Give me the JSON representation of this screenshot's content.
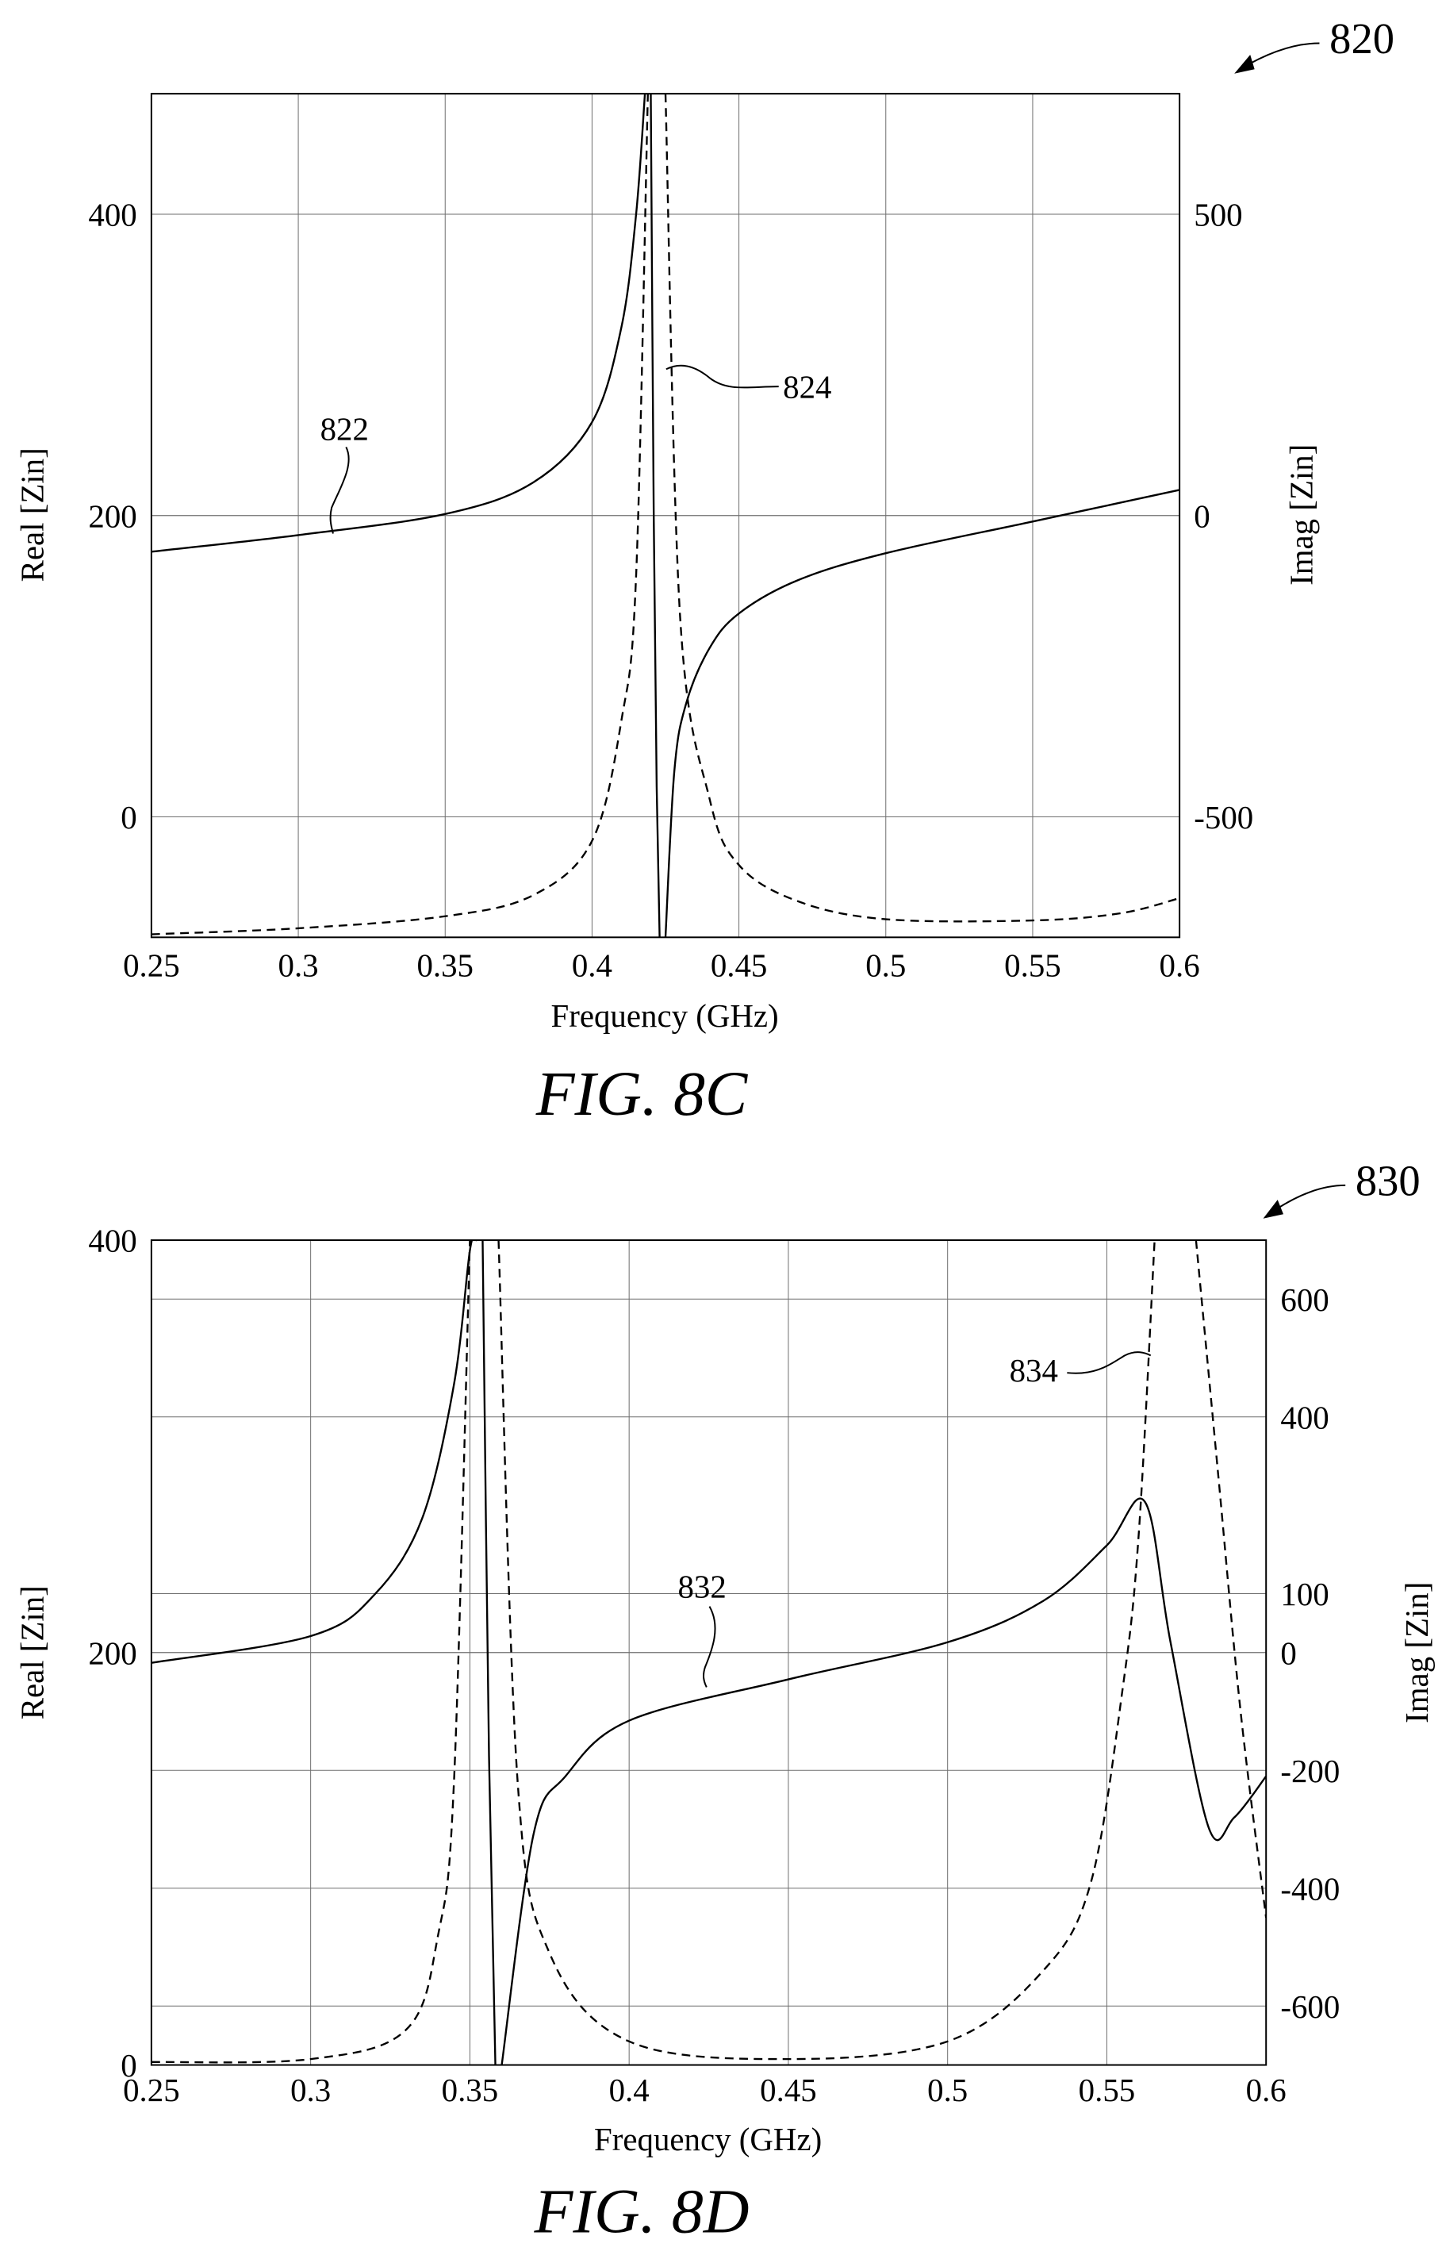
{
  "figures": [
    {
      "ref_number": "820",
      "caption": "FIG. 8C",
      "chart_data": {
        "type": "line",
        "xlabel": "Frequency (GHz)",
        "ylabel_left": "Real [Zin]",
        "ylabel_right": "Imag [Zin]",
        "xlim": [
          0.25,
          0.6
        ],
        "ylim_left": [
          -80,
          480
        ],
        "ylim_right": [
          -700,
          700
        ],
        "xticks": [
          "0.25",
          "0.3",
          "0.35",
          "0.4",
          "0.45",
          "0.5",
          "0.55",
          "0.6"
        ],
        "yticks_left": [
          "0",
          "200",
          "400"
        ],
        "yticks_right": [
          "-500",
          "0",
          "500"
        ],
        "grid": true,
        "series": [
          {
            "name": "822",
            "axis": "left",
            "style": "solid",
            "segments": [
              {
                "x": [
                  0.25,
                  0.3,
                  0.35,
                  0.38,
                  0.4,
                  0.41,
                  0.415,
                  0.418
                ],
                "y": [
                  176,
                  187,
                  201,
                  222,
                  262,
                  325,
                  400,
                  480
                ]
              },
              {
                "x": [
                  0.42,
                  0.421,
                  0.422,
                  0.423
                ],
                "y": [
                  480,
                  200,
                  20,
                  -80
                ]
              },
              {
                "x": [
                  0.425,
                  0.428,
                  0.432,
                  0.44,
                  0.45,
                  0.47,
                  0.5,
                  0.55,
                  0.6
                ],
                "y": [
                  -80,
                  30,
                  75,
                  112,
                  135,
                  157,
                  175,
                  196,
                  217
                ]
              }
            ]
          },
          {
            "name": "824",
            "axis": "right",
            "style": "dashed",
            "segments": [
              {
                "x": [
                  0.25,
                  0.3,
                  0.35,
                  0.38,
                  0.4,
                  0.41,
                  0.415,
                  0.419
                ],
                "y": [
                  -695,
                  -685,
                  -665,
                  -630,
                  -540,
                  -340,
                  -100,
                  700
                ]
              },
              {
                "x": [
                  0.425,
                  0.43,
                  0.44,
                  0.45,
                  0.47,
                  0.5,
                  0.55,
                  0.58,
                  0.6
                ],
                "y": [
                  700,
                  -170,
                  -470,
                  -580,
                  -640,
                  -670,
                  -672,
                  -660,
                  -635
                ]
              }
            ]
          }
        ]
      }
    },
    {
      "ref_number": "830",
      "caption": "FIG. 8D",
      "chart_data": {
        "type": "line",
        "xlabel": "Frequency (GHz)",
        "ylabel_left": "Real [Zin]",
        "ylabel_right": "Imag [Zin]",
        "xlim": [
          0.25,
          0.6
        ],
        "ylim_left": [
          0,
          400
        ],
        "ylim_right": [
          -700,
          700
        ],
        "xticks": [
          "0.25",
          "0.3",
          "0.35",
          "0.4",
          "0.45",
          "0.5",
          "0.55",
          "0.6"
        ],
        "yticks_left": [
          "0",
          "200",
          "400"
        ],
        "yticks_right": [
          "-600",
          "-400",
          "-200",
          "0",
          "100",
          "400",
          "600"
        ],
        "grid": true,
        "series": [
          {
            "name": "832",
            "axis": "left",
            "style": "solid",
            "segments": [
              {
                "x": [
                  0.25,
                  0.3,
                  0.32,
                  0.335,
                  0.345,
                  0.35,
                  0.352
                ],
                "y": [
                  195,
                  208,
                  228,
                  265,
                  330,
                  395,
                  400
                ]
              },
              {
                "x": [
                  0.354,
                  0.356,
                  0.358
                ],
                "y": [
                  400,
                  150,
                  0
                ]
              },
              {
                "x": [
                  0.36,
                  0.37,
                  0.38,
                  0.4,
                  0.45,
                  0.5,
                  0.53,
                  0.55,
                  0.562,
                  0.57,
                  0.582,
                  0.59,
                  0.6
                ],
                "y": [
                  0,
                  112,
                  140,
                  167,
                  187,
                  205,
                  225,
                  252,
                  273,
                  205,
                  115,
                  120,
                  140
                ]
              }
            ]
          },
          {
            "name": "834",
            "axis": "right",
            "style": "dashed",
            "segments": [
              {
                "x": [
                  0.25,
                  0.3,
                  0.33,
                  0.34,
                  0.345,
                  0.35
                ],
                "y": [
                  -695,
                  -690,
                  -640,
                  -480,
                  -220,
                  700
                ]
              },
              {
                "x": [
                  0.359,
                  0.365,
                  0.375,
                  0.4,
                  0.45,
                  0.5,
                  0.53,
                  0.545,
                  0.555,
                  0.56,
                  0.565
                ],
                "y": [
                  700,
                  -220,
                  -510,
                  -660,
                  -690,
                  -660,
                  -540,
                  -390,
                  -60,
                  200,
                  700
                ]
              },
              {
                "x": [
                  0.578,
                  0.585,
                  0.592,
                  0.6
                ],
                "y": [
                  700,
                  300,
                  -100,
                  -450
                ]
              }
            ]
          }
        ]
      }
    }
  ]
}
